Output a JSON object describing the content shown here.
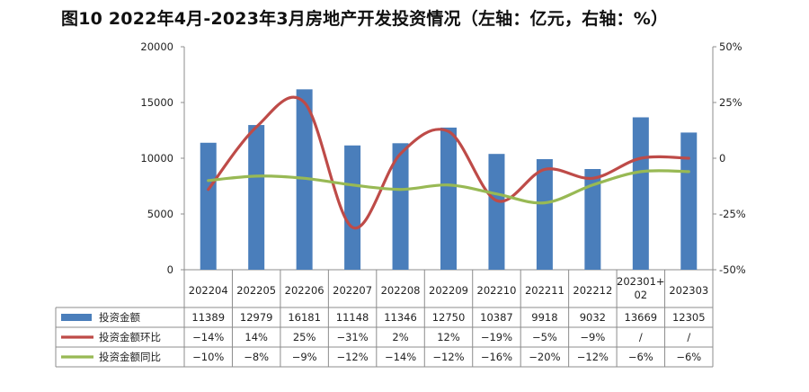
{
  "title": "图10  2022年4月-2023年3月房地产开发投资情况（左轴：亿元，右轴：%）",
  "chart_data": {
    "type": "bar",
    "title": "图10  2022年4月-2023年3月房地产开发投资情况（左轴：亿元，右轴：%）",
    "categories": [
      "202204",
      "202205",
      "202206",
      "202207",
      "202208",
      "202209",
      "202210",
      "202211",
      "202212",
      "202301+02",
      "202303"
    ],
    "y_left": {
      "lim": [
        0,
        20000
      ],
      "ticks": [
        "0",
        "5000",
        "10000",
        "15000",
        "20000"
      ]
    },
    "y_right": {
      "lim": [
        -50,
        50
      ],
      "ticks": [
        "-50%",
        "-25%",
        "0",
        "25%",
        "50%"
      ]
    },
    "grid": false,
    "legend_placement": "table-left",
    "series": [
      {
        "name": "投资金额",
        "type": "bar",
        "axis": "left",
        "color": "#4a7ebb",
        "values": [
          11389,
          12979,
          16181,
          11148,
          11346,
          12750,
          10387,
          9918,
          9032,
          13669,
          12305
        ],
        "labels": [
          "11389",
          "12979",
          "16181",
          "11148",
          "11346",
          "12750",
          "10387",
          "9918",
          "9032",
          "13669",
          "12305"
        ]
      },
      {
        "name": "投资金额环比",
        "type": "line",
        "axis": "right",
        "color": "#be4b48",
        "values": [
          -14,
          14,
          25,
          -31,
          2,
          12,
          -19,
          -5,
          -9,
          0,
          0
        ],
        "labels": [
          "−14%",
          "14%",
          "25%",
          "−31%",
          "2%",
          "12%",
          "−19%",
          "−5%",
          "−9%",
          "/",
          "/"
        ]
      },
      {
        "name": "投资金额同比",
        "type": "line",
        "axis": "right",
        "color": "#98b954",
        "values": [
          -10,
          -8,
          -9,
          -12,
          -14,
          -12,
          -16,
          -20,
          -12,
          -6,
          -6
        ],
        "labels": [
          "−10%",
          "−8%",
          "−9%",
          "−12%",
          "−14%",
          "−12%",
          "−16%",
          "−20%",
          "−12%",
          "−6%",
          "−6%"
        ]
      }
    ]
  }
}
